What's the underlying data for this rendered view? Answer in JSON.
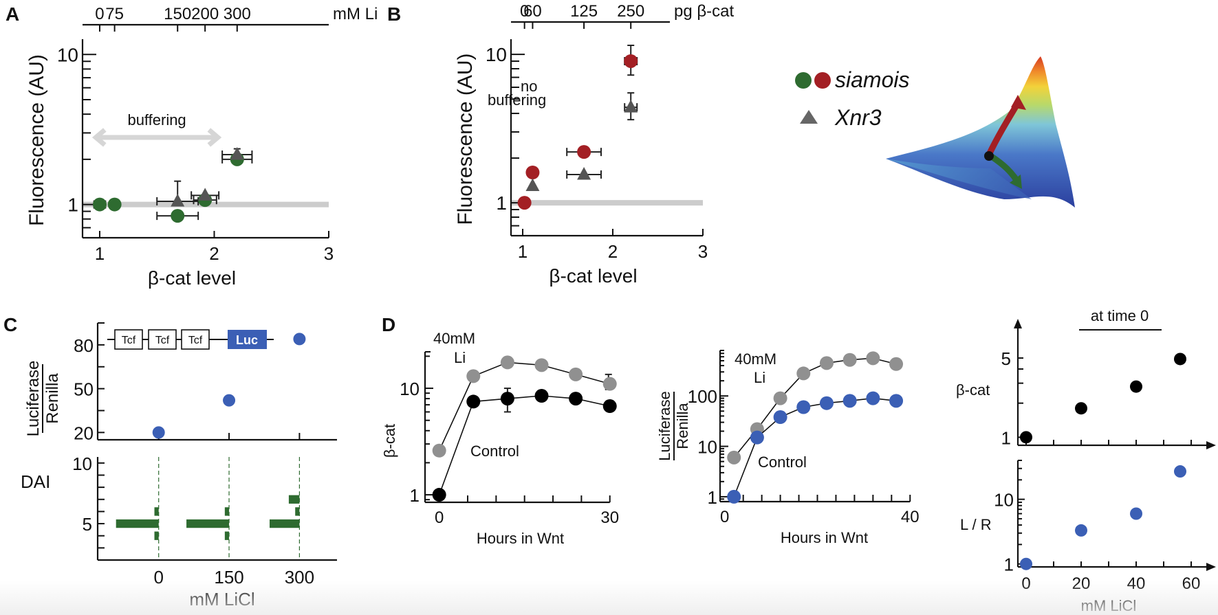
{
  "panels": {
    "A": {
      "label": "A"
    },
    "B": {
      "label": "B"
    },
    "C": {
      "label": "C"
    },
    "D": {
      "label": "D"
    }
  },
  "legend": {
    "siamois_label": "siamois",
    "xnr3_label": "Xnr3",
    "siamois_colors": [
      "#2e6b30",
      "#a31f24"
    ],
    "xnr3_color": "#666666"
  },
  "landscape": {
    "description": "3D surface (rainbow colored) with black ball and two arrows",
    "arrow_up_color": "#a31f24",
    "arrow_down_color": "#2e6b30"
  },
  "construct": {
    "tcf_labels": [
      "Tcf",
      "Tcf",
      "Tcf"
    ],
    "luc_label": "Luc",
    "luc_color": "#3b5fb5"
  },
  "colors": {
    "green": "#2e6b30",
    "red": "#a31f24",
    "gray_triangle": "#555555",
    "gray_circle": "#909090",
    "blue": "#3b5fb5",
    "black": "#000000",
    "baseline": "#cccccc"
  },
  "chart_data": [
    {
      "id": "A",
      "type": "scatter",
      "title": "",
      "xlabel": "β-cat level",
      "ylabel": "Fluorescence (AU)",
      "xscale": "linear",
      "yscale": "log",
      "xlim": [
        0.85,
        3.0
      ],
      "ylim": [
        0.6,
        12
      ],
      "xticks": [
        1,
        2,
        3
      ],
      "yticks_labeled": [
        1,
        10
      ],
      "top_axis": {
        "label": "mM Li",
        "ticks": [
          {
            "label": "0",
            "x": 1.0
          },
          {
            "label": "75",
            "x": 1.13
          },
          {
            "label": "150",
            "x": 1.68
          },
          {
            "label": "200",
            "x": 1.92
          },
          {
            "label": "300",
            "x": 2.2
          }
        ]
      },
      "baseline_y": 1,
      "annotation": "buffering",
      "annotation_arrow_x": [
        0.9,
        2.05
      ],
      "annotation_arrow_y": 2.8,
      "series": [
        {
          "name": "siamois",
          "marker": "circle",
          "color": "#2e6b30",
          "points": [
            {
              "x": 1.0,
              "y": 1.0,
              "xerr": 0.05
            },
            {
              "x": 1.13,
              "y": 1.0,
              "xerr": 0
            },
            {
              "x": 1.68,
              "y": 0.84,
              "xerr": 0.18
            },
            {
              "x": 1.92,
              "y": 1.07,
              "xerr": 0.1
            },
            {
              "x": 2.2,
              "y": 2.0,
              "xerr": 0.13,
              "yerr": 0.15
            }
          ]
        },
        {
          "name": "Xnr3",
          "marker": "triangle",
          "color": "#555555",
          "points": [
            {
              "x": 1.68,
              "y": 1.05,
              "xerr": 0.18,
              "yerr_up": 0.38
            },
            {
              "x": 1.92,
              "y": 1.15,
              "xerr": 0.12
            },
            {
              "x": 2.2,
              "y": 2.15,
              "xerr": 0.13,
              "yerr_up": 0.2
            }
          ]
        }
      ]
    },
    {
      "id": "B",
      "type": "scatter",
      "title": "",
      "xlabel": "β-cat level",
      "ylabel": "Fluorescence (AU)",
      "xscale": "linear",
      "yscale": "log",
      "xlim": [
        0.87,
        3.0
      ],
      "ylim": [
        0.6,
        12
      ],
      "xticks": [
        1,
        2,
        3
      ],
      "yticks_labeled": [
        1,
        10
      ],
      "top_axis": {
        "label": "pg β-cat",
        "ticks": [
          {
            "label": "0",
            "x": 1.02
          },
          {
            "label": "60",
            "x": 1.11
          },
          {
            "label": "125",
            "x": 1.68
          },
          {
            "label": "250",
            "x": 2.2
          }
        ]
      },
      "baseline_y": 1,
      "annotation": "no buffering",
      "series": [
        {
          "name": "siamois",
          "marker": "circle",
          "color": "#a31f24",
          "points": [
            {
              "x": 1.02,
              "y": 1.0
            },
            {
              "x": 1.11,
              "y": 1.6
            },
            {
              "x": 1.68,
              "y": 2.2,
              "xerr": 0.19
            },
            {
              "x": 2.2,
              "y": 9.0,
              "yerr": 2.5,
              "xerr": 0.02
            }
          ]
        },
        {
          "name": "Xnr3",
          "marker": "triangle",
          "color": "#555555",
          "points": [
            {
              "x": 1.11,
              "y": 1.3
            },
            {
              "x": 1.68,
              "y": 1.55,
              "xerr": 0.19
            },
            {
              "x": 2.2,
              "y": 4.4,
              "yerr": 1.1,
              "xerr": 0.02
            }
          ]
        }
      ]
    },
    {
      "id": "C-top",
      "type": "scatter",
      "xlabel": "",
      "ylabel": "Luciferase / Renilla",
      "ylabel_numerator": "Luciferase",
      "ylabel_denominator": "Renilla",
      "x": [
        0,
        150,
        300
      ],
      "y": [
        20,
        42,
        84
      ],
      "ylim": [
        15,
        95
      ],
      "xlim": [
        -130,
        380
      ],
      "yticks_labeled": [
        20,
        50,
        80
      ],
      "yticks_minor": [
        35,
        65
      ],
      "color": "#3b5fb5"
    },
    {
      "id": "C-bottom",
      "type": "bar",
      "orientation": "horizontal-histogram",
      "xlabel": "mM LiCl",
      "ylabel": "DAI",
      "categories": [
        "0",
        "150",
        "300"
      ],
      "x": [
        0,
        150,
        300
      ],
      "ylim": [
        2,
        10.5
      ],
      "yticks_labeled": [
        5,
        10
      ],
      "color": "#2e6b30",
      "distributions": [
        {
          "category": "0",
          "bins": [
            {
              "dai": 4,
              "freq": 0.1
            },
            {
              "dai": 5,
              "freq": 1.0
            },
            {
              "dai": 6,
              "freq": 0.1
            }
          ]
        },
        {
          "category": "150",
          "bins": [
            {
              "dai": 4,
              "freq": 0.1
            },
            {
              "dai": 5,
              "freq": 1.0
            },
            {
              "dai": 6,
              "freq": 0.1
            }
          ]
        },
        {
          "category": "300",
          "bins": [
            {
              "dai": 5,
              "freq": 0.7
            },
            {
              "dai": 6,
              "freq": 0.1
            },
            {
              "dai": 7,
              "freq": 0.25
            }
          ]
        }
      ]
    },
    {
      "id": "D-1",
      "type": "line",
      "xlabel": "Hours in Wnt",
      "ylabel": "β-cat",
      "yscale": "log",
      "xlim": [
        -2.5,
        31
      ],
      "ylim": [
        0.85,
        22
      ],
      "xticks_labeled": [
        0,
        30
      ],
      "xticks_minor": [
        5,
        10,
        15,
        20,
        25
      ],
      "yticks_labeled": [
        1,
        10
      ],
      "annotations": [
        "40mM Li",
        "Control"
      ],
      "series": [
        {
          "name": "40mM Li",
          "color": "#909090",
          "x": [
            0,
            6,
            12,
            18,
            24,
            30
          ],
          "y": [
            2.6,
            13.0,
            17.5,
            16.5,
            13.5,
            11.0
          ],
          "yerr_last": 2.5
        },
        {
          "name": "Control",
          "color": "#000000",
          "x": [
            0,
            6,
            12,
            18,
            24,
            30
          ],
          "y": [
            1.0,
            7.5,
            8.0,
            8.5,
            8.0,
            6.8
          ],
          "yerr_index": 2,
          "yerr": 2.0
        }
      ]
    },
    {
      "id": "D-2",
      "type": "line",
      "xlabel": "Hours in Wnt",
      "ylabel": "Luciferase / Renilla",
      "ylabel_numerator": "Luciferase",
      "ylabel_denominator": "Renilla",
      "yscale": "log",
      "xlim": [
        -1,
        41
      ],
      "ylim": [
        0.8,
        800
      ],
      "xticks_labeled": [
        0,
        40
      ],
      "xticks_minor": [
        4,
        8,
        12,
        16,
        20,
        24,
        28,
        32,
        36
      ],
      "yticks_labeled": [
        1,
        10,
        100
      ],
      "annotations": [
        "40mM Li",
        "Control"
      ],
      "series": [
        {
          "name": "40mM Li",
          "color": "#909090",
          "x": [
            2,
            7,
            12,
            17,
            22,
            27,
            32,
            37,
            42
          ],
          "y": [
            6,
            22,
            90,
            280,
            450,
            520,
            560,
            430,
            300
          ]
        },
        {
          "name": "Control",
          "color": "#3b5fb5",
          "x": [
            2,
            7,
            12,
            17,
            22,
            27,
            32,
            37,
            42
          ],
          "y": [
            1,
            15,
            38,
            60,
            72,
            80,
            90,
            80,
            70
          ]
        }
      ]
    },
    {
      "id": "D-3-top",
      "type": "scatter",
      "title": "at time 0",
      "xlabel": "",
      "ylabel": "β-cat",
      "yscale": "log",
      "x": [
        0,
        20,
        40,
        56
      ],
      "y": [
        1.0,
        1.8,
        2.8,
        4.9
      ],
      "xlim": [
        -3,
        67
      ],
      "ylim": [
        0.85,
        7.5
      ],
      "yticks_labeled": [
        1,
        5
      ],
      "color": "#000000"
    },
    {
      "id": "D-3-bottom",
      "type": "scatter",
      "xlabel": "mM LiCl",
      "ylabel": "L / R",
      "yscale": "log",
      "x": [
        0,
        20,
        40,
        56
      ],
      "y": [
        1.0,
        3.3,
        6.0,
        27
      ],
      "xlim": [
        -3,
        67
      ],
      "xticks_labeled": [
        0,
        20,
        40,
        60
      ],
      "xticks_minor": [
        10,
        30,
        50
      ],
      "ylim": [
        0.9,
        40
      ],
      "yticks_labeled": [
        1,
        10
      ],
      "color": "#3b5fb5"
    }
  ]
}
